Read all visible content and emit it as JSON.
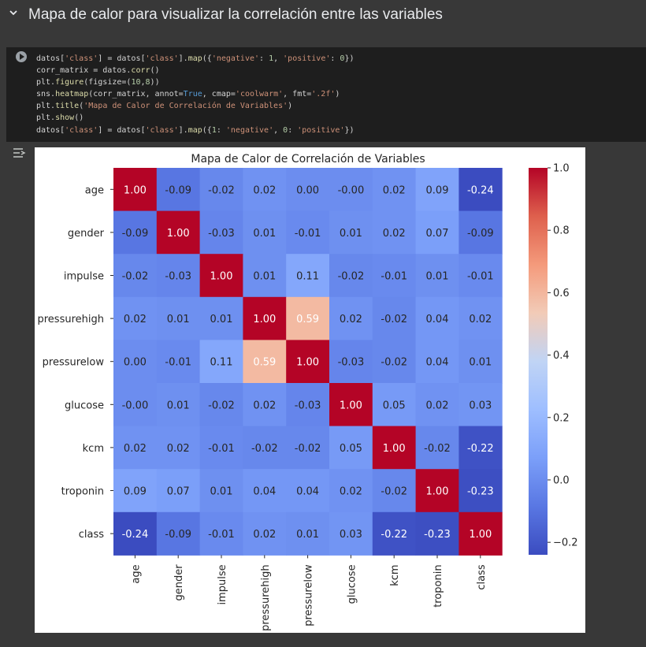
{
  "section": {
    "title": "Mapa de calor para visualizar la correlación entre las variables",
    "chevron_icon": "chevron-down-icon"
  },
  "code_cell": {
    "run_icon": "play-icon",
    "lines": [
      "datos['class'] = datos['class'].map({'negative': 1, 'positive': 0})",
      "corr_matrix = datos.corr()",
      "plt.figure(figsize=(10,8))",
      "sns.heatmap(corr_matrix, annot=True, cmap='coolwarm', fmt='.2f')",
      "plt.title('Mapa de Calor de Correlación de Variables')",
      "plt.show()",
      "datos['class'] = datos['class'].map({1: 'negative', 0: 'positive'})"
    ]
  },
  "output": {
    "icon": "output-settings-icon"
  },
  "chart_data": {
    "type": "heatmap",
    "title": "Mapa de Calor de Correlación de Variables",
    "labels": [
      "age",
      "gender",
      "impulse",
      "pressurehigh",
      "pressurelow",
      "glucose",
      "kcm",
      "troponin",
      "class"
    ],
    "values": [
      [
        1.0,
        -0.09,
        -0.02,
        0.02,
        0.0,
        -0.0,
        0.02,
        0.09,
        -0.24
      ],
      [
        -0.09,
        1.0,
        -0.03,
        0.01,
        -0.01,
        0.01,
        0.02,
        0.07,
        -0.09
      ],
      [
        -0.02,
        -0.03,
        1.0,
        0.01,
        0.11,
        -0.02,
        -0.01,
        0.01,
        -0.01
      ],
      [
        0.02,
        0.01,
        0.01,
        1.0,
        0.59,
        0.02,
        -0.02,
        0.04,
        0.02
      ],
      [
        0.0,
        -0.01,
        0.11,
        0.59,
        1.0,
        -0.03,
        -0.02,
        0.04,
        0.01
      ],
      [
        -0.0,
        0.01,
        -0.02,
        0.02,
        -0.03,
        1.0,
        0.05,
        0.02,
        0.03
      ],
      [
        0.02,
        0.02,
        -0.01,
        -0.02,
        -0.02,
        0.05,
        1.0,
        -0.02,
        -0.22
      ],
      [
        0.09,
        0.07,
        0.01,
        0.04,
        0.04,
        0.02,
        -0.02,
        1.0,
        -0.23
      ],
      [
        -0.24,
        -0.09,
        -0.01,
        0.02,
        0.01,
        0.03,
        -0.22,
        -0.23,
        1.0
      ]
    ],
    "annotations": [
      [
        "1.00",
        "-0.09",
        "-0.02",
        "0.02",
        "0.00",
        "-0.00",
        "0.02",
        "0.09",
        "-0.24"
      ],
      [
        "-0.09",
        "1.00",
        "-0.03",
        "0.01",
        "-0.01",
        "0.01",
        "0.02",
        "0.07",
        "-0.09"
      ],
      [
        "-0.02",
        "-0.03",
        "1.00",
        "0.01",
        "0.11",
        "-0.02",
        "-0.01",
        "0.01",
        "-0.01"
      ],
      [
        "0.02",
        "0.01",
        "0.01",
        "1.00",
        "0.59",
        "0.02",
        "-0.02",
        "0.04",
        "0.02"
      ],
      [
        "0.00",
        "-0.01",
        "0.11",
        "0.59",
        "1.00",
        "-0.03",
        "-0.02",
        "0.04",
        "0.01"
      ],
      [
        "-0.00",
        "0.01",
        "-0.02",
        "0.02",
        "-0.03",
        "1.00",
        "0.05",
        "0.02",
        "0.03"
      ],
      [
        "0.02",
        "0.02",
        "-0.01",
        "-0.02",
        "-0.02",
        "0.05",
        "1.00",
        "-0.02",
        "-0.22"
      ],
      [
        "0.09",
        "0.07",
        "0.01",
        "0.04",
        "0.04",
        "0.02",
        "-0.02",
        "1.00",
        "-0.23"
      ],
      [
        "-0.24",
        "-0.09",
        "-0.01",
        "0.02",
        "0.01",
        "0.03",
        "-0.22",
        "-0.23",
        "1.00"
      ]
    ],
    "colormap": "coolwarm",
    "vmin": -0.24,
    "vmax": 1.0,
    "colorbar_ticks": [
      "1.0",
      "0.8",
      "0.6",
      "0.4",
      "0.2",
      "0.0",
      "−0.2"
    ]
  }
}
